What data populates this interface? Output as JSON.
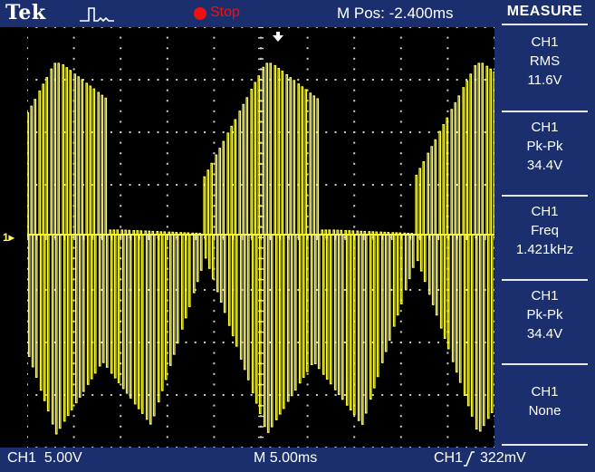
{
  "header": {
    "brand": "Tek",
    "run_state": "Stop",
    "horizontal_position": "M Pos: -2.400ms",
    "colors": {
      "bar": "#1b2f6e",
      "stop": "#ee1111",
      "trace": "#ffff44"
    }
  },
  "channel_marker": "1▸",
  "measure": {
    "title": "MEASURE",
    "items": [
      {
        "source": "CH1",
        "type": "RMS",
        "value": "11.6V"
      },
      {
        "source": "CH1",
        "type": "Pk-Pk",
        "value": "34.4V"
      },
      {
        "source": "CH1",
        "type": "Freq",
        "value": "1.421kHz"
      },
      {
        "source": "CH1",
        "type": "Pk-Pk",
        "value": "34.4V"
      },
      {
        "source": "CH1",
        "type": "None",
        "value": ""
      }
    ]
  },
  "footer": {
    "ch1_scale": "CH1  5.00V",
    "timebase": "M 5.00ms",
    "trigger_source": "CH1",
    "trigger_level": "322mV"
  }
}
